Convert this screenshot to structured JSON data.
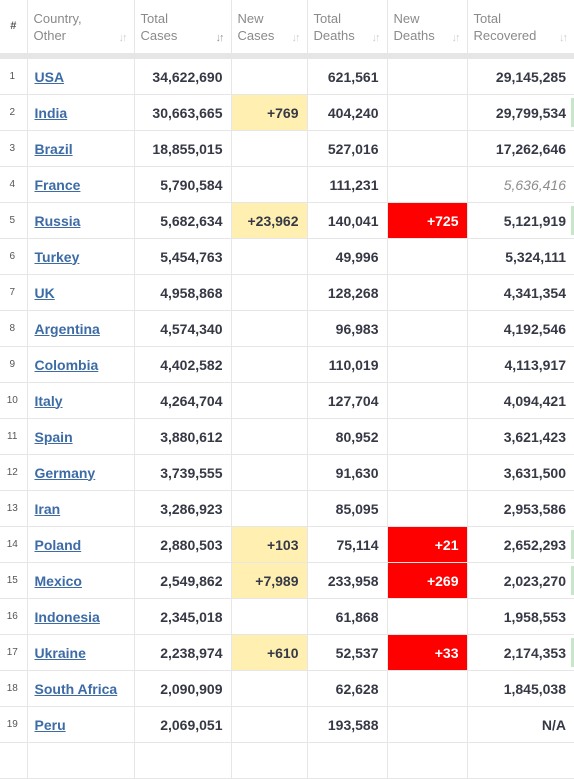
{
  "columns": [
    {
      "label": "#",
      "lines": [
        "#"
      ],
      "sort": false
    },
    {
      "label": "Country, Other",
      "lines": [
        "Country,",
        "Other"
      ],
      "sort": true,
      "active": false
    },
    {
      "label": "Total Cases",
      "lines": [
        "Total",
        "Cases"
      ],
      "sort": true,
      "active": true
    },
    {
      "label": "New Cases",
      "lines": [
        "New",
        "Cases"
      ],
      "sort": true,
      "active": false
    },
    {
      "label": "Total Deaths",
      "lines": [
        "Total",
        "Deaths"
      ],
      "sort": true,
      "active": false
    },
    {
      "label": "New Deaths",
      "lines": [
        "New",
        "Deaths"
      ],
      "sort": true,
      "active": false
    },
    {
      "label": "Total Recovered",
      "lines": [
        "Total",
        "Recovered"
      ],
      "sort": true,
      "active": false
    }
  ],
  "rows": [
    {
      "rank": "1",
      "country": "USA",
      "total_cases": "34,622,690",
      "new_cases": "",
      "total_deaths": "621,561",
      "new_deaths": "",
      "total_recovered": "29,145,285"
    },
    {
      "rank": "2",
      "country": "India",
      "total_cases": "30,663,665",
      "new_cases": "+769",
      "total_deaths": "404,240",
      "new_deaths": "",
      "total_recovered": "29,799,534",
      "recovered_bar": true
    },
    {
      "rank": "3",
      "country": "Brazil",
      "total_cases": "18,855,015",
      "new_cases": "",
      "total_deaths": "527,016",
      "new_deaths": "",
      "total_recovered": "17,262,646"
    },
    {
      "rank": "4",
      "country": "France",
      "total_cases": "5,790,584",
      "new_cases": "",
      "total_deaths": "111,231",
      "new_deaths": "",
      "total_recovered": "5,636,416",
      "recovered_dim": true
    },
    {
      "rank": "5",
      "country": "Russia",
      "total_cases": "5,682,634",
      "new_cases": "+23,962",
      "total_deaths": "140,041",
      "new_deaths": "+725",
      "total_recovered": "5,121,919",
      "recovered_bar": true
    },
    {
      "rank": "6",
      "country": "Turkey",
      "total_cases": "5,454,763",
      "new_cases": "",
      "total_deaths": "49,996",
      "new_deaths": "",
      "total_recovered": "5,324,111"
    },
    {
      "rank": "7",
      "country": "UK",
      "total_cases": "4,958,868",
      "new_cases": "",
      "total_deaths": "128,268",
      "new_deaths": "",
      "total_recovered": "4,341,354"
    },
    {
      "rank": "8",
      "country": "Argentina",
      "total_cases": "4,574,340",
      "new_cases": "",
      "total_deaths": "96,983",
      "new_deaths": "",
      "total_recovered": "4,192,546"
    },
    {
      "rank": "9",
      "country": "Colombia",
      "total_cases": "4,402,582",
      "new_cases": "",
      "total_deaths": "110,019",
      "new_deaths": "",
      "total_recovered": "4,113,917"
    },
    {
      "rank": "10",
      "country": "Italy",
      "total_cases": "4,264,704",
      "new_cases": "",
      "total_deaths": "127,704",
      "new_deaths": "",
      "total_recovered": "4,094,421"
    },
    {
      "rank": "11",
      "country": "Spain",
      "total_cases": "3,880,612",
      "new_cases": "",
      "total_deaths": "80,952",
      "new_deaths": "",
      "total_recovered": "3,621,423"
    },
    {
      "rank": "12",
      "country": "Germany",
      "total_cases": "3,739,555",
      "new_cases": "",
      "total_deaths": "91,630",
      "new_deaths": "",
      "total_recovered": "3,631,500"
    },
    {
      "rank": "13",
      "country": "Iran",
      "total_cases": "3,286,923",
      "new_cases": "",
      "total_deaths": "85,095",
      "new_deaths": "",
      "total_recovered": "2,953,586"
    },
    {
      "rank": "14",
      "country": "Poland",
      "total_cases": "2,880,503",
      "new_cases": "+103",
      "total_deaths": "75,114",
      "new_deaths": "+21",
      "total_recovered": "2,652,293",
      "recovered_bar": true
    },
    {
      "rank": "15",
      "country": "Mexico",
      "total_cases": "2,549,862",
      "new_cases": "+7,989",
      "total_deaths": "233,958",
      "new_deaths": "+269",
      "total_recovered": "2,023,270",
      "recovered_bar": true
    },
    {
      "rank": "16",
      "country": "Indonesia",
      "total_cases": "2,345,018",
      "new_cases": "",
      "total_deaths": "61,868",
      "new_deaths": "",
      "total_recovered": "1,958,553"
    },
    {
      "rank": "17",
      "country": "Ukraine",
      "total_cases": "2,238,974",
      "new_cases": "+610",
      "total_deaths": "52,537",
      "new_deaths": "+33",
      "total_recovered": "2,174,353",
      "recovered_bar": true
    },
    {
      "rank": "18",
      "country": "South Africa",
      "total_cases": "2,090,909",
      "new_cases": "",
      "total_deaths": "62,628",
      "new_deaths": "",
      "total_recovered": "1,845,038"
    },
    {
      "rank": "19",
      "country": "Peru",
      "total_cases": "2,069,051",
      "new_cases": "",
      "total_deaths": "193,588",
      "new_deaths": "",
      "total_recovered": "N/A"
    },
    {
      "rank": "",
      "country": "",
      "total_cases": "",
      "new_cases": "",
      "total_deaths": "",
      "new_deaths": "",
      "total_recovered": ""
    }
  ],
  "colors": {
    "new_cases_highlight": "#fff0b1",
    "new_deaths_highlight": "#ff0000",
    "link": "#3c6ba5",
    "recovered_bar": "#c8e6c9"
  },
  "icons": {
    "sort": "sort-arrows-icon"
  }
}
